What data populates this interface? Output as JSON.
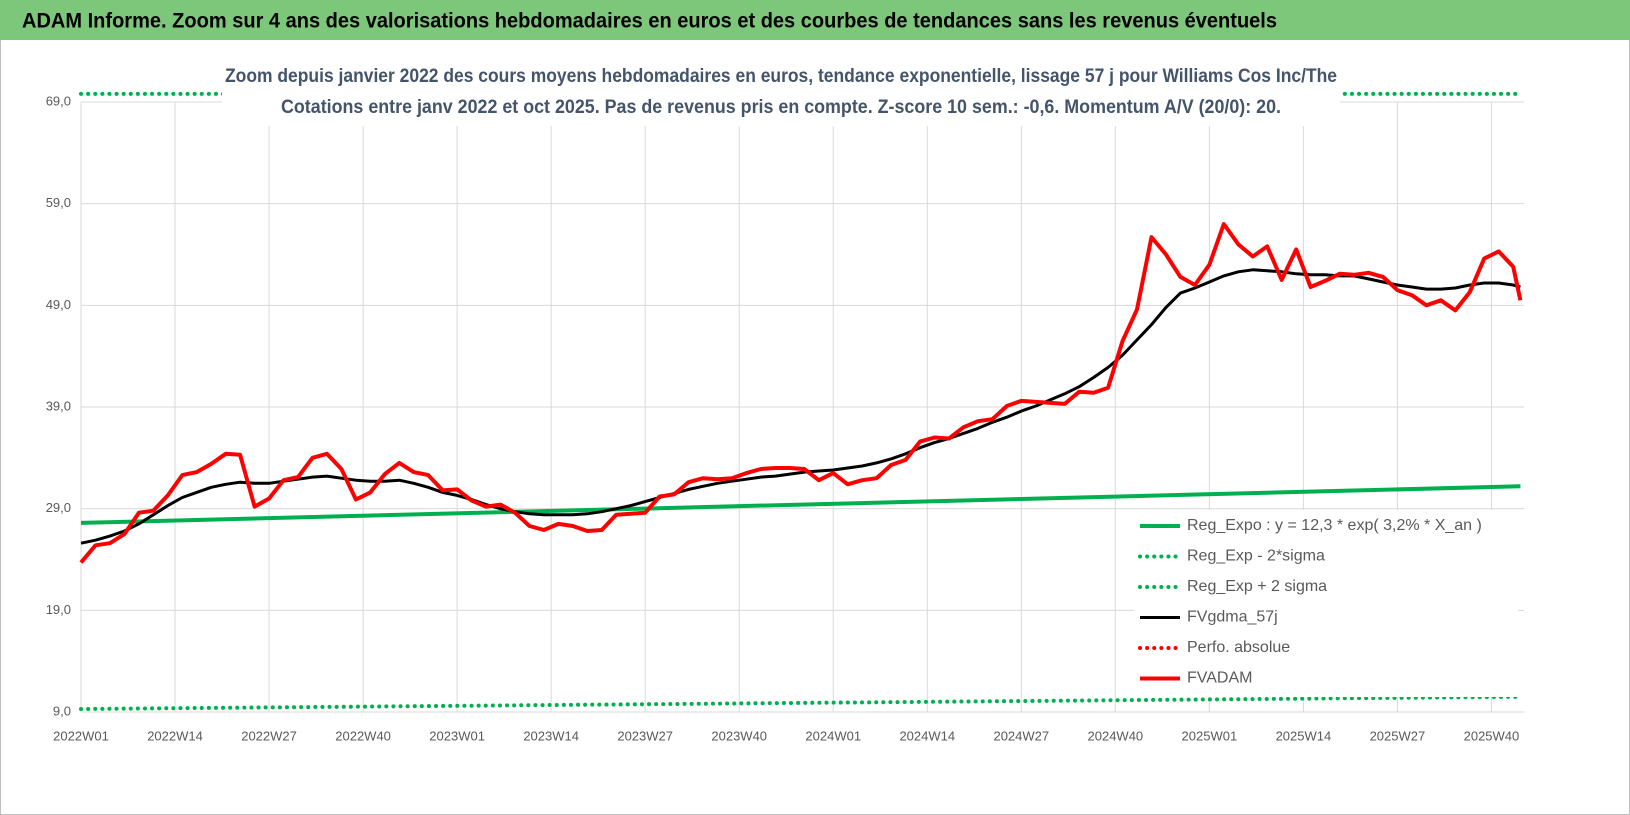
{
  "header": {
    "title": "ADAM Informe. Zoom sur 4 ans des valorisations hebdomadaires en euros et des courbes de tendances sans les revenus éventuels"
  },
  "chart_data": {
    "type": "line",
    "title": "Zoom depuis janvier 2022 des cours moyens hebdomadaires en euros, tendance exponentielle, lissage 57 j pour Williams Cos Inc/The",
    "subtitle": "Cotations entre janv 2022 et oct 2025. Pas de revenus pris en compte. Z-score 10 sem.: -0,6. Momentum A/V (20/0): 20.",
    "x": [
      0,
      2,
      4,
      6,
      8,
      10,
      12,
      14,
      16,
      18,
      20,
      22,
      24,
      26,
      28,
      30,
      32,
      34,
      36,
      38,
      40,
      42,
      44,
      46,
      48,
      50,
      52,
      54,
      56,
      58,
      60,
      62,
      64,
      66,
      68,
      70,
      72,
      74,
      76,
      78,
      80,
      82,
      84,
      86,
      88,
      90,
      92,
      94,
      96,
      98,
      100,
      102,
      104,
      106,
      108,
      110,
      112,
      114,
      116,
      118,
      120,
      122,
      124,
      126,
      128,
      130,
      132,
      134,
      136,
      138,
      140,
      142,
      144,
      146,
      148,
      150,
      152,
      154,
      156,
      158,
      160,
      162,
      164,
      166,
      168,
      170,
      172,
      174,
      176,
      178,
      180,
      182,
      184,
      186,
      188,
      190,
      192,
      194,
      196,
      198,
      199
    ],
    "xlim": [
      0,
      199.5
    ],
    "xticks": [
      {
        "value": 0,
        "label": "2022W01"
      },
      {
        "value": 13,
        "label": "2022W14"
      },
      {
        "value": 26,
        "label": "2022W27"
      },
      {
        "value": 39,
        "label": "2022W40"
      },
      {
        "value": 52,
        "label": "2023W01"
      },
      {
        "value": 65,
        "label": "2023W14"
      },
      {
        "value": 78,
        "label": "2023W27"
      },
      {
        "value": 91,
        "label": "2023W40"
      },
      {
        "value": 104,
        "label": "2024W01"
      },
      {
        "value": 117,
        "label": "2024W14"
      },
      {
        "value": 130,
        "label": "2024W27"
      },
      {
        "value": 143,
        "label": "2024W40"
      },
      {
        "value": 156,
        "label": "2025W01"
      },
      {
        "value": 169,
        "label": "2025W14"
      },
      {
        "value": 182,
        "label": "2025W27"
      },
      {
        "value": 195,
        "label": "2025W40"
      }
    ],
    "ylim": [
      9,
      69
    ],
    "yticks": [
      {
        "value": 9,
        "label": "9,0"
      },
      {
        "value": 19,
        "label": "19,0"
      },
      {
        "value": 29,
        "label": "29,0"
      },
      {
        "value": 39,
        "label": "39,0"
      },
      {
        "value": 49,
        "label": "49,0"
      },
      {
        "value": 59,
        "label": "59,0"
      },
      {
        "value": 69,
        "label": "69,0"
      }
    ],
    "grid": true,
    "legend": "lower right",
    "series": [
      {
        "name": "Reg_Expo : y = 12,3 * exp( 3,2% *  X_an )",
        "color": "#00b050",
        "style": "solid",
        "x": [
          0,
          199
        ],
        "values": [
          27.6,
          31.2
        ]
      },
      {
        "name": "Reg_Exp - 2*sigma",
        "color": "#00b050",
        "style": "dotted",
        "x": [
          0,
          199
        ],
        "values": [
          9.3,
          10.5
        ]
      },
      {
        "name": "Reg_Exp + 2 sigma",
        "color": "#00b050",
        "style": "dotted",
        "x": [
          0,
          199
        ],
        "values": [
          69.8,
          69.8
        ]
      },
      {
        "name": "FVgdma_57j",
        "color": "#000000",
        "style": "solid",
        "values": [
          25.6,
          25.9,
          26.3,
          26.8,
          27.5,
          28.4,
          29.3,
          30.1,
          30.6,
          31.1,
          31.4,
          31.6,
          31.5,
          31.5,
          31.7,
          31.9,
          32.1,
          32.2,
          32.0,
          31.8,
          31.7,
          31.7,
          31.8,
          31.5,
          31.1,
          30.6,
          30.3,
          29.9,
          29.4,
          29.0,
          28.7,
          28.5,
          28.4,
          28.4,
          28.4,
          28.5,
          28.7,
          29.0,
          29.3,
          29.7,
          30.1,
          30.5,
          30.9,
          31.2,
          31.5,
          31.7,
          31.9,
          32.1,
          32.2,
          32.4,
          32.6,
          32.7,
          32.8,
          33.0,
          33.2,
          33.5,
          33.9,
          34.4,
          35.0,
          35.5,
          35.9,
          36.4,
          36.9,
          37.5,
          38.0,
          38.6,
          39.1,
          39.7,
          40.3,
          41.0,
          41.9,
          42.9,
          44.1,
          45.6,
          47.1,
          48.8,
          50.2,
          50.7,
          51.3,
          51.9,
          52.3,
          52.5,
          52.4,
          52.3,
          52.1,
          52.0,
          52.0,
          51.9,
          51.9,
          51.6,
          51.3,
          51.0,
          50.8,
          50.6,
          50.6,
          50.7,
          51.0,
          51.2,
          51.2,
          51.0,
          50.8
        ]
      },
      {
        "name": "Perfo. absolue",
        "color": "#ff0000",
        "style": "dotted",
        "x": [],
        "values": []
      },
      {
        "name": "FVADAM",
        "color": "#ff0000",
        "style": "solid",
        "values": [
          23.7,
          25.4,
          25.6,
          26.5,
          28.6,
          28.8,
          30.3,
          32.3,
          32.6,
          33.4,
          34.4,
          34.3,
          29.2,
          30.0,
          31.8,
          32.1,
          34.0,
          34.4,
          32.9,
          29.9,
          30.6,
          32.4,
          33.5,
          32.6,
          32.3,
          30.8,
          30.9,
          29.8,
          29.2,
          29.4,
          28.6,
          27.3,
          26.9,
          27.5,
          27.3,
          26.8,
          26.9,
          28.4,
          28.5,
          28.6,
          30.2,
          30.4,
          31.6,
          32.0,
          31.9,
          32.0,
          32.5,
          32.9,
          33.0,
          33.0,
          32.9,
          31.8,
          32.5,
          31.4,
          31.8,
          32.0,
          33.3,
          33.8,
          35.6,
          36.0,
          35.9,
          37.0,
          37.6,
          37.8,
          39.1,
          39.6,
          39.5,
          39.4,
          39.3,
          40.5,
          40.4,
          40.9,
          45.5,
          48.6,
          55.7,
          54.0,
          51.8,
          51.0,
          53.0,
          57.0,
          55.0,
          53.8,
          54.8,
          51.5,
          54.5,
          50.8,
          51.4,
          52.1,
          52.0,
          52.2,
          51.8,
          50.5,
          50.0,
          49.0,
          49.5,
          48.5,
          50.3,
          53.6,
          54.3,
          52.8,
          49.5
        ]
      }
    ]
  }
}
